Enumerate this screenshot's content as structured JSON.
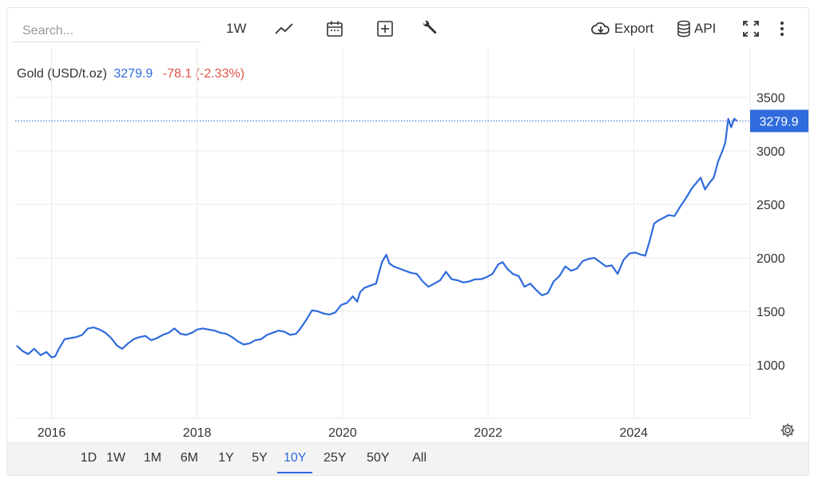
{
  "toolbar": {
    "search_placeholder": "Search...",
    "interval_label": "1W",
    "export_label": "Export",
    "api_label": "API",
    "icons": [
      "line-chart-icon",
      "calendar-icon",
      "plus-box-icon",
      "wrench-icon",
      "cloud-download-icon",
      "database-icon",
      "fullscreen-icon",
      "more-vertical-icon"
    ]
  },
  "quote": {
    "name": "Gold (USD/t.oz)",
    "last": "3279.9",
    "change": "-78.1 (-2.33%)"
  },
  "colors": {
    "line": "#2f6bdc",
    "change_negative": "#e0524a",
    "grid": "#e8e8e8",
    "last_tag_bg": "#2f6bdc"
  },
  "ranges": [
    {
      "label": "1D",
      "active": false
    },
    {
      "label": "1W",
      "active": false
    },
    {
      "label": "1M",
      "active": false
    },
    {
      "label": "6M",
      "active": false
    },
    {
      "label": "1Y",
      "active": false
    },
    {
      "label": "5Y",
      "active": false
    },
    {
      "label": "10Y",
      "active": true
    },
    {
      "label": "25Y",
      "active": false
    },
    {
      "label": "50Y",
      "active": false
    },
    {
      "label": "All",
      "active": false
    }
  ],
  "chart_data": {
    "type": "line",
    "x_ticks": [
      "2016",
      "2018",
      "2020",
      "2022",
      "2024"
    ],
    "y_ticks": [
      "3500",
      "3000",
      "2500",
      "2000",
      "1500",
      "1000"
    ],
    "ylim": [
      500,
      3800
    ],
    "xlim": [
      2015.5,
      2025.6
    ],
    "grid": true,
    "last_value_label": "3279.9",
    "series": [
      {
        "x": [
          2015.52,
          2015.6,
          2015.68,
          2015.76,
          2015.85,
          2015.93,
          2016.0,
          2016.05,
          2016.1,
          2016.18,
          2016.26,
          2016.34,
          2016.42,
          2016.5,
          2016.58,
          2016.66,
          2016.74,
          2016.82,
          2016.9,
          2016.97,
          2017.05,
          2017.13,
          2017.21,
          2017.29,
          2017.37,
          2017.45,
          2017.53,
          2017.61,
          2017.69,
          2017.77,
          2017.85,
          2017.93,
          2018.0,
          2018.08,
          2018.16,
          2018.24,
          2018.32,
          2018.4,
          2018.48,
          2018.56,
          2018.64,
          2018.72,
          2018.8,
          2018.88,
          2018.96,
          2019.04,
          2019.12,
          2019.2,
          2019.28,
          2019.36,
          2019.42,
          2019.5,
          2019.58,
          2019.66,
          2019.74,
          2019.82,
          2019.9,
          2019.98,
          2020.06,
          2020.14,
          2020.2,
          2020.24,
          2020.3,
          2020.38,
          2020.46,
          2020.54,
          2020.6,
          2020.64,
          2020.7,
          2020.78,
          2020.86,
          2020.94,
          2021.02,
          2021.1,
          2021.18,
          2021.26,
          2021.34,
          2021.42,
          2021.5,
          2021.58,
          2021.66,
          2021.74,
          2021.82,
          2021.9,
          2021.98,
          2022.06,
          2022.14,
          2022.2,
          2022.26,
          2022.34,
          2022.42,
          2022.5,
          2022.58,
          2022.66,
          2022.74,
          2022.82,
          2022.9,
          2022.98,
          2023.06,
          2023.14,
          2023.22,
          2023.3,
          2023.38,
          2023.46,
          2023.54,
          2023.62,
          2023.7,
          2023.78,
          2023.86,
          2023.94,
          2024.02,
          2024.1,
          2024.16,
          2024.22,
          2024.28,
          2024.34,
          2024.4,
          2024.48,
          2024.56,
          2024.64,
          2024.72,
          2024.8,
          2024.86,
          2024.92,
          2024.98,
          2025.04,
          2025.1,
          2025.16,
          2025.22,
          2025.26,
          2025.3,
          2025.34,
          2025.38,
          2025.42
        ],
        "y": [
          1180,
          1130,
          1100,
          1150,
          1090,
          1120,
          1070,
          1080,
          1150,
          1240,
          1250,
          1260,
          1280,
          1340,
          1350,
          1330,
          1300,
          1250,
          1180,
          1150,
          1200,
          1240,
          1260,
          1270,
          1230,
          1250,
          1280,
          1300,
          1340,
          1290,
          1280,
          1300,
          1330,
          1340,
          1330,
          1320,
          1300,
          1290,
          1260,
          1220,
          1190,
          1200,
          1230,
          1240,
          1280,
          1300,
          1320,
          1310,
          1280,
          1290,
          1340,
          1420,
          1510,
          1500,
          1480,
          1470,
          1490,
          1560,
          1580,
          1640,
          1590,
          1680,
          1720,
          1740,
          1760,
          1960,
          2030,
          1950,
          1920,
          1900,
          1880,
          1860,
          1850,
          1780,
          1730,
          1760,
          1790,
          1870,
          1800,
          1790,
          1770,
          1780,
          1800,
          1800,
          1820,
          1850,
          1940,
          1960,
          1900,
          1850,
          1830,
          1730,
          1760,
          1700,
          1650,
          1670,
          1780,
          1830,
          1920,
          1880,
          1900,
          1970,
          1990,
          2000,
          1960,
          1920,
          1930,
          1850,
          1980,
          2040,
          2050,
          2030,
          2020,
          2160,
          2320,
          2350,
          2370,
          2400,
          2390,
          2480,
          2560,
          2650,
          2700,
          2750,
          2640,
          2700,
          2750,
          2900,
          3000,
          3080,
          3300,
          3220,
          3300,
          3279.9
        ]
      }
    ]
  },
  "settings_icon": "gear-icon"
}
